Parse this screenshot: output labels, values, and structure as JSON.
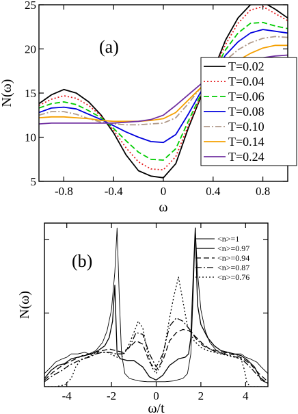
{
  "chart_data": [
    {
      "panel": "(a)",
      "type": "line",
      "xlabel": "ω",
      "ylabel": "N(ω)",
      "xlim": [
        -1.0,
        1.0
      ],
      "ylim": [
        5,
        25
      ],
      "xticks": [
        -0.8,
        -0.4,
        0,
        0.4,
        0.8
      ],
      "xtick_labels": [
        "-0.8",
        "-0.4",
        "0",
        "0.4",
        "0.8"
      ],
      "yticks": [
        5,
        10,
        15,
        20,
        25
      ],
      "ytick_labels": [
        "5",
        "10",
        "15",
        "20",
        "25"
      ],
      "legend_position": "right",
      "series": [
        {
          "name": "T=0.02",
          "color": "#000000",
          "dash": "solid",
          "x": [
            -1.0,
            -0.9,
            -0.8,
            -0.7,
            -0.6,
            -0.5,
            -0.4,
            -0.3,
            -0.2,
            -0.1,
            0.0,
            0.1,
            0.2,
            0.3,
            0.4,
            0.5,
            0.6,
            0.7,
            0.8,
            0.9,
            1.0
          ],
          "y": [
            13.8,
            14.8,
            15.4,
            15.0,
            14.0,
            12.5,
            10.5,
            8.0,
            6.2,
            5.6,
            5.4,
            7.0,
            11.0,
            14.5,
            17.5,
            21.0,
            23.5,
            25.0,
            25.3,
            24.5,
            23.5
          ]
        },
        {
          "name": "T=0.04",
          "color": "#e41a1c",
          "dash": "dot",
          "x": [
            -1.0,
            -0.9,
            -0.8,
            -0.7,
            -0.6,
            -0.5,
            -0.4,
            -0.3,
            -0.2,
            -0.1,
            0.0,
            0.1,
            0.2,
            0.3,
            0.4,
            0.5,
            0.6,
            0.7,
            0.8,
            0.9,
            1.0
          ],
          "y": [
            13.6,
            14.3,
            14.7,
            14.4,
            13.6,
            12.4,
            10.8,
            8.8,
            7.2,
            6.4,
            6.3,
            7.8,
            11.3,
            14.6,
            17.4,
            20.5,
            22.9,
            24.4,
            24.8,
            24.0,
            23.2
          ]
        },
        {
          "name": "T=0.06",
          "color": "#00cc00",
          "dash": "dash",
          "x": [
            -1.0,
            -0.9,
            -0.8,
            -0.7,
            -0.6,
            -0.5,
            -0.4,
            -0.3,
            -0.2,
            -0.1,
            0.0,
            0.1,
            0.2,
            0.3,
            0.4,
            0.5,
            0.6,
            0.7,
            0.8,
            0.9,
            1.0
          ],
          "y": [
            13.3,
            13.8,
            14.0,
            13.7,
            13.0,
            12.2,
            11.0,
            9.6,
            8.3,
            7.5,
            7.4,
            8.7,
            11.8,
            14.8,
            17.3,
            19.9,
            21.8,
            22.9,
            23.0,
            22.6,
            22.3
          ]
        },
        {
          "name": "T=0.08",
          "color": "#0000dd",
          "dash": "solid",
          "x": [
            -1.0,
            -0.9,
            -0.8,
            -0.7,
            -0.6,
            -0.5,
            -0.4,
            -0.3,
            -0.2,
            -0.1,
            0.0,
            0.1,
            0.2,
            0.3,
            0.4,
            0.5,
            0.6,
            0.7,
            0.8,
            0.9,
            1.0
          ],
          "y": [
            12.8,
            13.3,
            13.4,
            13.2,
            12.6,
            12.0,
            11.3,
            10.6,
            10.0,
            9.5,
            9.4,
            10.3,
            12.6,
            15.1,
            17.3,
            19.3,
            20.8,
            21.8,
            22.2,
            22.0,
            21.8
          ]
        },
        {
          "name": "T=0.10",
          "color": "#b09a8a",
          "dash": "dashdot",
          "x": [
            -1.0,
            -0.9,
            -0.8,
            -0.7,
            -0.6,
            -0.5,
            -0.4,
            -0.3,
            -0.2,
            -0.1,
            0.0,
            0.1,
            0.2,
            0.3,
            0.4,
            0.5,
            0.6,
            0.7,
            0.8,
            0.9,
            1.0
          ],
          "y": [
            12.5,
            12.9,
            12.9,
            12.6,
            12.1,
            11.7,
            11.5,
            11.4,
            11.4,
            11.5,
            11.6,
            12.2,
            13.8,
            15.6,
            17.2,
            18.7,
            19.9,
            20.7,
            21.2,
            21.4,
            21.3
          ]
        },
        {
          "name": "T=0.14",
          "color": "#f5a000",
          "dash": "solid",
          "x": [
            -1.0,
            -0.9,
            -0.8,
            -0.7,
            -0.6,
            -0.5,
            -0.4,
            -0.3,
            -0.2,
            -0.1,
            0.0,
            0.1,
            0.2,
            0.3,
            0.4,
            0.5,
            0.6,
            0.7,
            0.8,
            0.9,
            1.0
          ],
          "y": [
            12.2,
            12.3,
            12.3,
            12.2,
            12.1,
            11.9,
            11.8,
            11.8,
            11.8,
            11.9,
            12.1,
            12.8,
            14.2,
            15.6,
            16.9,
            17.9,
            18.7,
            19.5,
            20.1,
            20.4,
            20.4
          ]
        },
        {
          "name": "T=0.24",
          "color": "#7030a0",
          "dash": "solid",
          "x": [
            -1.0,
            -0.9,
            -0.8,
            -0.7,
            -0.6,
            -0.5,
            -0.4,
            -0.3,
            -0.2,
            -0.1,
            0.0,
            0.1,
            0.2,
            0.3,
            0.4,
            0.5,
            0.6,
            0.7,
            0.8,
            0.9,
            1.0
          ],
          "y": [
            11.5,
            11.6,
            11.6,
            11.6,
            11.6,
            11.6,
            11.6,
            11.7,
            11.8,
            12.0,
            12.5,
            13.6,
            14.8,
            16.0,
            17.0,
            17.7,
            18.3,
            18.8,
            19.0,
            19.2,
            19.3
          ]
        }
      ]
    },
    {
      "panel": "(b)",
      "type": "line",
      "xlabel": "ω/t",
      "ylabel": "N(ω)",
      "xlim": [
        -5,
        5
      ],
      "ylim": [
        0,
        1.0
      ],
      "xticks": [
        -4,
        -2,
        0,
        2,
        4
      ],
      "xtick_labels": [
        "-4",
        "-2",
        "0",
        "2",
        "4"
      ],
      "yticks": [
        0.45,
        0.9
      ],
      "ytick_labels": [
        "",
        ""
      ],
      "legend_position": "top-right",
      "series": [
        {
          "name": "<n>=1",
          "color": "#000000",
          "dash": "thin",
          "x": [
            -5.0,
            -4.7,
            -4.5,
            -4.2,
            -4.0,
            -3.8,
            -3.5,
            -3.2,
            -3.0,
            -2.7,
            -2.4,
            -2.2,
            -2.0,
            -1.85,
            -1.75,
            -1.65,
            -1.55,
            -1.4,
            -1.2,
            -0.8,
            -0.4,
            0.0,
            0.4,
            0.8,
            1.2,
            1.4,
            1.55,
            1.65,
            1.75,
            1.85,
            2.0,
            2.2,
            2.4,
            2.7,
            3.0,
            3.2,
            3.5,
            3.8,
            4.0,
            4.2,
            4.5,
            4.7,
            5.0
          ],
          "y": [
            0.08,
            0.12,
            0.15,
            0.17,
            0.18,
            0.2,
            0.2,
            0.21,
            0.2,
            0.22,
            0.27,
            0.34,
            0.47,
            0.7,
            0.97,
            0.55,
            0.2,
            0.08,
            0.05,
            0.035,
            0.03,
            0.03,
            0.03,
            0.035,
            0.05,
            0.08,
            0.2,
            0.55,
            0.97,
            0.7,
            0.47,
            0.34,
            0.27,
            0.22,
            0.2,
            0.21,
            0.2,
            0.2,
            0.18,
            0.17,
            0.15,
            0.12,
            0.08
          ]
        },
        {
          "name": "<n>=0.97",
          "color": "#000000",
          "dash": "solid",
          "x": [
            -5.0,
            -4.7,
            -4.4,
            -4.1,
            -3.8,
            -3.5,
            -3.2,
            -2.9,
            -2.6,
            -2.3,
            -2.1,
            -1.95,
            -1.85,
            -1.75,
            -1.6,
            -1.3,
            -1.0,
            -0.6,
            -0.3,
            0.0,
            0.3,
            0.6,
            1.0,
            1.3,
            1.45,
            1.55,
            1.65,
            1.75,
            1.85,
            2.0,
            2.3,
            2.6,
            2.9,
            3.2,
            3.5,
            3.8,
            4.1,
            4.4,
            4.7,
            5.0
          ],
          "y": [
            0.05,
            0.1,
            0.13,
            0.14,
            0.17,
            0.18,
            0.19,
            0.2,
            0.22,
            0.25,
            0.3,
            0.4,
            0.62,
            0.2,
            0.17,
            0.16,
            0.16,
            0.12,
            0.06,
            0.04,
            0.07,
            0.13,
            0.17,
            0.18,
            0.2,
            0.3,
            0.65,
            0.97,
            0.5,
            0.38,
            0.3,
            0.25,
            0.22,
            0.21,
            0.2,
            0.19,
            0.16,
            0.12,
            0.04,
            0.02
          ]
        },
        {
          "name": "<n>=0.94",
          "color": "#000000",
          "dash": "dash",
          "x": [
            -5.0,
            -4.6,
            -4.2,
            -3.9,
            -3.6,
            -3.3,
            -3.0,
            -2.7,
            -2.4,
            -2.1,
            -1.8,
            -1.5,
            -1.2,
            -0.9,
            -0.6,
            -0.3,
            0.0,
            0.3,
            0.6,
            0.9,
            1.2,
            1.5,
            1.8,
            2.1,
            2.4,
            2.7,
            3.0,
            3.3,
            3.6,
            3.9,
            4.2,
            4.6,
            5.0
          ],
          "y": [
            0.04,
            0.09,
            0.13,
            0.15,
            0.17,
            0.19,
            0.2,
            0.21,
            0.22,
            0.23,
            0.22,
            0.21,
            0.24,
            0.28,
            0.26,
            0.15,
            0.1,
            0.16,
            0.28,
            0.33,
            0.35,
            0.34,
            0.3,
            0.26,
            0.23,
            0.22,
            0.21,
            0.2,
            0.19,
            0.17,
            0.14,
            0.08,
            0.03
          ]
        },
        {
          "name": "<n>=0.87",
          "color": "#000000",
          "dash": "dashdot",
          "x": [
            -5.0,
            -4.6,
            -4.2,
            -3.9,
            -3.6,
            -3.3,
            -3.0,
            -2.7,
            -2.4,
            -2.1,
            -1.8,
            -1.5,
            -1.2,
            -0.9,
            -0.6,
            -0.3,
            0.0,
            0.3,
            0.6,
            0.9,
            1.2,
            1.5,
            1.8,
            2.1,
            2.4,
            2.7,
            3.0,
            3.3,
            3.6,
            3.9,
            4.2,
            4.6,
            5.0
          ],
          "y": [
            0.03,
            0.07,
            0.1,
            0.13,
            0.15,
            0.17,
            0.18,
            0.2,
            0.21,
            0.21,
            0.2,
            0.2,
            0.24,
            0.33,
            0.32,
            0.2,
            0.12,
            0.2,
            0.37,
            0.42,
            0.4,
            0.35,
            0.29,
            0.25,
            0.23,
            0.21,
            0.2,
            0.19,
            0.18,
            0.16,
            0.12,
            0.06,
            0.02
          ]
        },
        {
          "name": "<n>=0.76",
          "color": "#000000",
          "dash": "dot",
          "x": [
            -5.0,
            -4.5,
            -4.1,
            -3.8,
            -3.6,
            -3.4,
            -3.1,
            -2.8,
            -2.5,
            -2.2,
            -1.9,
            -1.6,
            -1.3,
            -1.0,
            -0.8,
            -0.6,
            -0.4,
            -0.2,
            0.0,
            0.2,
            0.4,
            0.6,
            0.8,
            1.0,
            1.2,
            1.4,
            1.7,
            2.0,
            2.3,
            2.6,
            2.9,
            3.2,
            3.5,
            3.8,
            3.95,
            4.05,
            4.2,
            4.6,
            5.0
          ],
          "y": [
            0.0,
            0.0,
            0.01,
            0.05,
            0.12,
            0.16,
            0.18,
            0.2,
            0.21,
            0.21,
            0.19,
            0.17,
            0.23,
            0.33,
            0.4,
            0.36,
            0.22,
            0.12,
            0.08,
            0.13,
            0.26,
            0.42,
            0.56,
            0.67,
            0.52,
            0.37,
            0.28,
            0.24,
            0.22,
            0.21,
            0.2,
            0.19,
            0.18,
            0.17,
            0.1,
            0.03,
            0.0,
            0.0,
            0.0
          ]
        }
      ]
    }
  ]
}
